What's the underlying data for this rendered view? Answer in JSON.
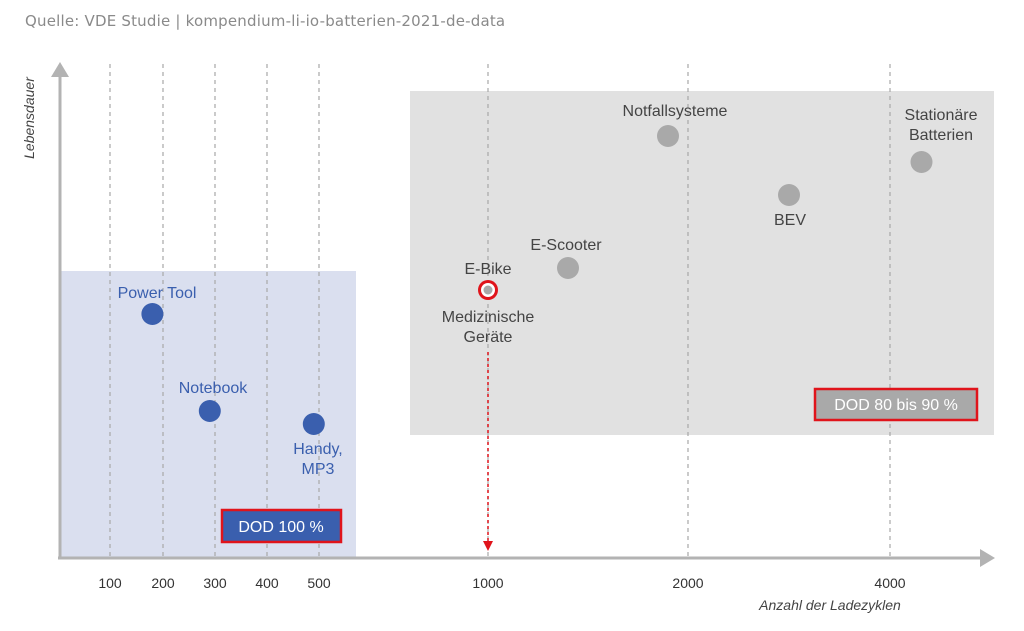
{
  "source": "Quelle: VDE Studie | kompendium-li-io-batterien-2021-de-data",
  "colors": {
    "blue": "#3a5fae",
    "blue_region": "#dadfef",
    "gray_region": "#e1e1e1",
    "gray_point": "#a9a9a9",
    "highlight": "#e0141b",
    "axis": "#b3b3b3",
    "grid": "#a8a8a8"
  },
  "chart_data": {
    "type": "scatter",
    "title": "",
    "xlabel": "Anzahl der Ladezyklen",
    "ylabel": "Lebensdauer",
    "x_ticks": [
      "100",
      "200",
      "300",
      "400",
      "500",
      "1000",
      "2000",
      "4000"
    ],
    "grid": "vertical dashed lines at x ticks",
    "regions": [
      {
        "label": "DOD 100 %",
        "group": "blue",
        "x_range": [
          0,
          600
        ]
      },
      {
        "label": "DOD 80 bis 90 %",
        "group": "gray",
        "x_range": [
          700,
          5000
        ]
      }
    ],
    "series": [
      {
        "group": "blue",
        "points": [
          {
            "label": "Power Tool",
            "x": 180
          },
          {
            "label": "Notebook",
            "x": 290
          },
          {
            "label": "Handy, MP3",
            "x": 490
          }
        ]
      },
      {
        "group": "gray",
        "points": [
          {
            "label": "E-Bike",
            "x": 1000,
            "highlighted": true
          },
          {
            "label": "Medizinische Geräte",
            "x": 1000,
            "highlighted": true
          },
          {
            "label": "E-Scooter",
            "x": 1400
          },
          {
            "label": "Notfallsysteme",
            "x": 1900
          },
          {
            "label": "BEV",
            "x": 3000
          },
          {
            "label": "Stationäre Batterien",
            "x": 4300
          }
        ]
      }
    ],
    "annotations": [
      "arrow from E-Bike / Medizinische Geräte point down to x = 1000"
    ]
  }
}
